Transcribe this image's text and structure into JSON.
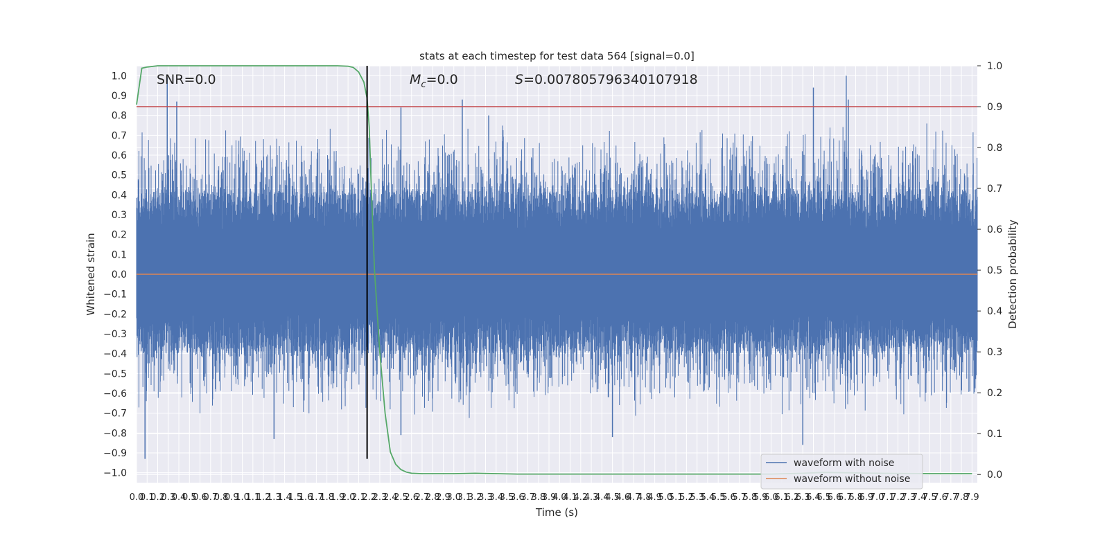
{
  "chart_data": {
    "type": "line",
    "title": "stats at each timestep for test data 564 [signal=0.0]",
    "xlabel": "Time (s)",
    "ylabel": "Whitened strain",
    "y2label": "Detection probability",
    "xlim": [
      0.0,
      7.95
    ],
    "ylim": [
      -1.05,
      1.05
    ],
    "y2lim": [
      -0.02,
      1.0
    ],
    "x_ticks": [
      "0.0",
      "0.1",
      "0.2",
      "0.3",
      "0.4",
      "0.5",
      "0.6",
      "0.7",
      "0.8",
      "0.9",
      "1.0",
      "1.1",
      "1.2",
      "1.3",
      "1.4",
      "1.5",
      "1.6",
      "1.7",
      "1.8",
      "1.9",
      "2.0",
      "2.1",
      "2.2",
      "2.3",
      "2.4",
      "2.5",
      "2.6",
      "2.7",
      "2.8",
      "2.9",
      "3.0",
      "3.1",
      "3.2",
      "3.3",
      "3.4",
      "3.5",
      "3.6",
      "3.7",
      "3.8",
      "3.9",
      "4.0",
      "4.1",
      "4.2",
      "4.3",
      "4.4",
      "4.5",
      "4.6",
      "4.7",
      "4.8",
      "4.9",
      "5.0",
      "5.1",
      "5.2",
      "5.3",
      "5.4",
      "5.5",
      "5.6",
      "5.7",
      "5.8",
      "5.9",
      "6.0",
      "6.1",
      "6.2",
      "6.3",
      "6.4",
      "6.5",
      "6.6",
      "6.7",
      "6.8",
      "6.9",
      "7.0",
      "7.1",
      "7.2",
      "7.3",
      "7.4",
      "7.5",
      "7.6",
      "7.7",
      "7.8",
      "7.9"
    ],
    "y_ticks": [
      "1.0",
      "0.9",
      "0.8",
      "0.7",
      "0.6",
      "0.5",
      "0.4",
      "0.3",
      "0.2",
      "0.1",
      "0.0",
      "−0.1",
      "−0.2",
      "−0.3",
      "−0.4",
      "−0.5",
      "−0.6",
      "−0.7",
      "−0.8",
      "−0.9",
      "−1.0"
    ],
    "y2_ticks": [
      "1.0",
      "0.9",
      "0.8",
      "0.7",
      "0.6",
      "0.5",
      "0.4",
      "0.3",
      "0.2",
      "0.1",
      "0.0"
    ],
    "annotations": {
      "snr": "SNR=0.0",
      "mc_symbol": "M",
      "mc_sub": "c",
      "mc_value": "=0.0",
      "s_symbol": "S",
      "s_value": "=0.007805796340107918"
    },
    "legend": {
      "placement": "lower-right",
      "entries": [
        {
          "label": "waveform with noise",
          "color": "#4c72b0"
        },
        {
          "label": "waveform without noise",
          "color": "#dd8452"
        }
      ]
    },
    "series": [
      {
        "name": "waveform with noise",
        "color": "#4c72b0",
        "description_samples": 3180,
        "envelope_upper": 0.5,
        "envelope_lower": -0.45,
        "noise_seed": 564
      },
      {
        "name": "waveform without noise",
        "color": "#dd8452",
        "constant": 0.0
      },
      {
        "color": "#55a868",
        "axis": "right",
        "x": [
          0.0,
          0.05,
          0.1,
          0.2,
          0.4,
          0.8,
          1.2,
          1.6,
          1.9,
          2.0,
          2.05,
          2.1,
          2.15,
          2.18,
          2.2,
          2.22,
          2.25,
          2.3,
          2.35,
          2.4,
          2.45,
          2.5,
          2.55,
          2.6,
          2.7,
          2.8,
          3.0,
          3.2,
          3.4,
          3.6,
          4.0,
          5.0,
          6.0,
          6.3,
          6.5,
          7.0,
          7.5,
          7.9
        ],
        "y": [
          0.905,
          0.994,
          0.997,
          1.0,
          1.0,
          1.0,
          1.0,
          1.0,
          1.0,
          0.999,
          0.996,
          0.985,
          0.96,
          0.92,
          0.85,
          0.7,
          0.5,
          0.3,
          0.15,
          0.055,
          0.025,
          0.012,
          0.006,
          0.003,
          0.002,
          0.002,
          0.002,
          0.003,
          0.002,
          0.001,
          0.001,
          0.001,
          0.001,
          0.003,
          0.005,
          0.003,
          0.002,
          0.002
        ]
      },
      {
        "color": "#c44e52",
        "axis": "right",
        "constant": 0.9
      },
      {
        "color": "#000000",
        "type": "vline",
        "x": 2.18,
        "ylim": [
          -0.93,
          1.0
        ]
      }
    ],
    "spikes": [
      {
        "x": 0.29,
        "y": 0.99
      },
      {
        "x": 0.38,
        "y": 0.87
      },
      {
        "x": 3.08,
        "y": 0.88
      },
      {
        "x": 3.33,
        "y": 0.8
      },
      {
        "x": 2.5,
        "y": 0.84
      },
      {
        "x": 6.4,
        "y": 0.94
      },
      {
        "x": 6.71,
        "y": 1.0
      },
      {
        "x": 6.73,
        "y": 0.88
      },
      {
        "x": 0.08,
        "y": -0.93
      },
      {
        "x": 2.5,
        "y": -0.81
      },
      {
        "x": 6.3,
        "y": -0.86
      },
      {
        "x": 4.5,
        "y": -0.82
      },
      {
        "x": 1.3,
        "y": -0.83
      }
    ],
    "grid": true,
    "background": "#eaeaf2",
    "grid_color": "#ffffff"
  }
}
